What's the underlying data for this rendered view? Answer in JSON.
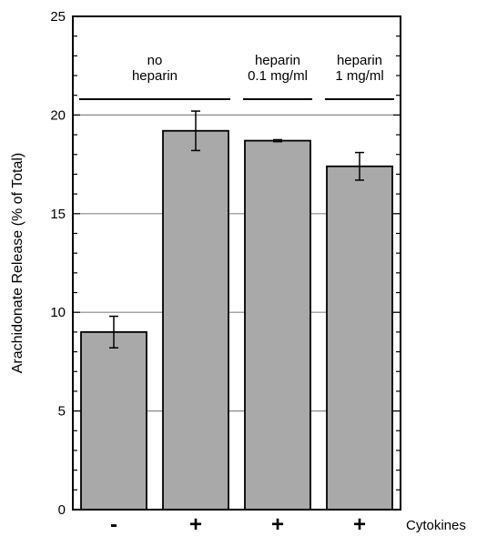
{
  "chart_data": {
    "type": "bar",
    "xlabel": "",
    "ylabel": "Arachidonate Release (% of Total)",
    "ylim": [
      0,
      25
    ],
    "yticks": [
      "0",
      "5",
      "10",
      "15",
      "20",
      "25"
    ],
    "grid": true,
    "categories": [
      "-",
      "+",
      "+",
      "+"
    ],
    "values": [
      9.0,
      19.2,
      18.7,
      17.4
    ],
    "errors": [
      0.8,
      1.0,
      0.05,
      0.7
    ],
    "bar_color": "#a9a9a9",
    "row_label": "Cytokines",
    "groups": [
      {
        "label": [
          "no",
          "heparin"
        ],
        "bars": [
          0,
          1
        ]
      },
      {
        "label": [
          "heparin",
          "0.1 mg/ml"
        ],
        "bars": [
          2,
          2
        ]
      },
      {
        "label": [
          "heparin",
          "1 mg/ml"
        ],
        "bars": [
          3,
          3
        ]
      }
    ]
  }
}
